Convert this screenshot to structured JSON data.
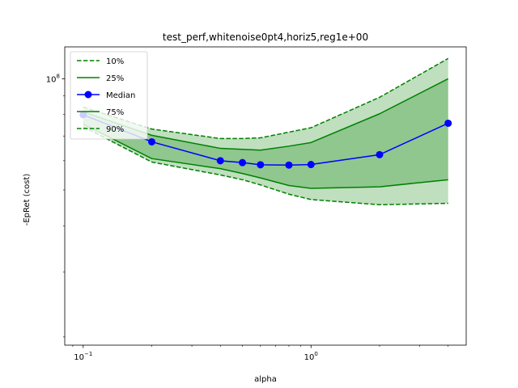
{
  "chart_data": {
    "type": "line",
    "title": "test_perf,whitenoise0pt4,horiz5,reg1e+00",
    "xlabel": "alpha",
    "ylabel": "-EpRet (cost)",
    "xscale": "log",
    "yscale": "log",
    "xlim": [
      0.083,
      4.8
    ],
    "ylim": [
      19000000,
      122000000
    ],
    "x_ticks": [
      {
        "value": 0.1,
        "base": "10",
        "exp": "−1"
      },
      {
        "value": 1,
        "base": "10",
        "exp": "0"
      }
    ],
    "y_ticks": [
      {
        "value": 100000000,
        "base": "10",
        "exp": "8"
      }
    ],
    "legend_position": "top-left",
    "grid": false,
    "x": [
      0.1,
      0.2,
      0.4,
      0.5,
      0.6,
      0.8,
      1.0,
      2.0,
      4.0
    ],
    "series": [
      {
        "name": "10%",
        "style": "dashed",
        "color": "#008000",
        "values": [
          74200000,
          59500000,
          54900000,
          53300000,
          51600000,
          48700000,
          47100000,
          45600000,
          46000000
        ]
      },
      {
        "name": "25%",
        "style": "solid",
        "color": "#008000",
        "values": [
          75400000,
          60800000,
          57100000,
          55400000,
          53900000,
          51400000,
          50500000,
          51000000,
          53300000
        ]
      },
      {
        "name": "Median",
        "style": "solid-markers",
        "color": "#0000ff",
        "values": [
          79900000,
          67500000,
          60000000,
          59300000,
          58500000,
          58400000,
          58600000,
          62300000,
          75800000
        ]
      },
      {
        "name": "75%",
        "style": "solid",
        "color": "#008000",
        "values": [
          81400000,
          70300000,
          64800000,
          64400000,
          64100000,
          65700000,
          67200000,
          80400000,
          100000000
        ]
      },
      {
        "name": "90%",
        "style": "dashed",
        "color": "#008000",
        "values": [
          83800000,
          73100000,
          68900000,
          68900000,
          69200000,
          71700000,
          73700000,
          89100000,
          113500000
        ]
      }
    ],
    "fills": [
      {
        "between": [
          "10%",
          "90%"
        ],
        "color": "#008000",
        "opacity": 0.25
      },
      {
        "between": [
          "25%",
          "75%"
        ],
        "color": "#008000",
        "opacity": 0.25
      }
    ]
  }
}
